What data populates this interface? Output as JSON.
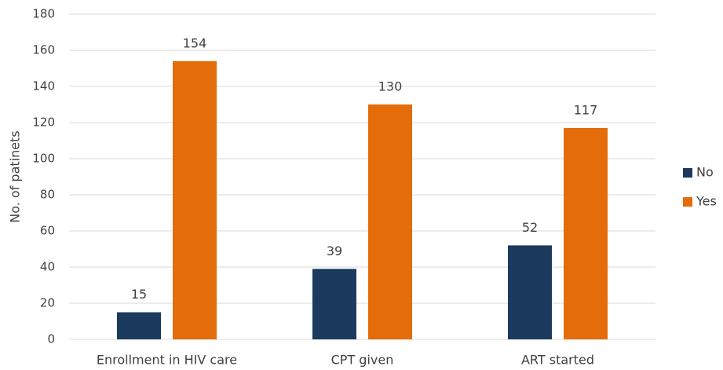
{
  "chart_data": {
    "type": "bar",
    "y_label": "No. of patinets",
    "categories": [
      "Enrollment in HIV care",
      "CPT given",
      "ART started"
    ],
    "series": [
      {
        "name": "No",
        "color": "#1b3a5e",
        "values": [
          15,
          39,
          52
        ]
      },
      {
        "name": "Yes",
        "color": "#e46c0a",
        "values": [
          154,
          130,
          117
        ]
      }
    ],
    "ylim": [
      0,
      180
    ],
    "yticks": [
      0,
      20,
      40,
      60,
      80,
      100,
      120,
      140,
      160,
      180
    ],
    "grid": true,
    "legend": "right"
  }
}
